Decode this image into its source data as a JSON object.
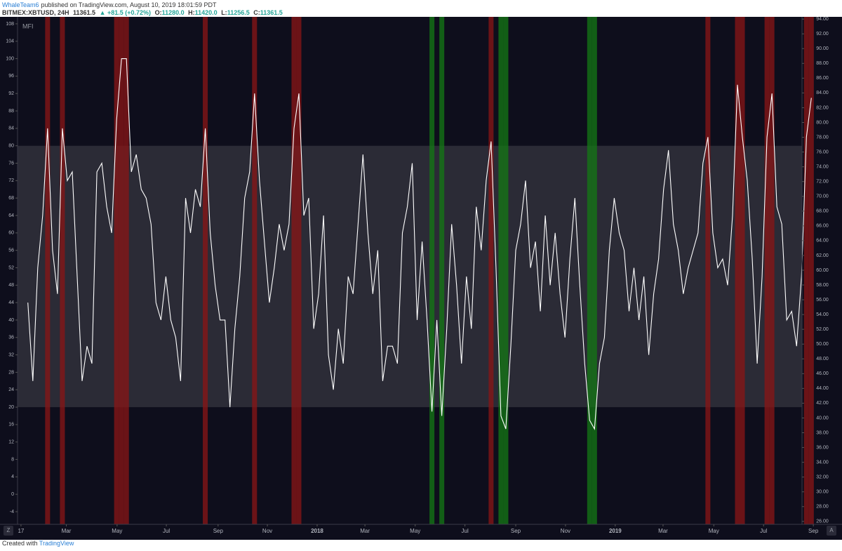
{
  "header": {
    "author": "WhaleTeam6",
    "published": "published on TradingView.com, August 10, 2019 18:01:59 PDT",
    "symbol": "BITMEX:XBTUSD, 24H",
    "last": "11361.5",
    "change": "▲ +81.5 (+0.72%)",
    "open_label": "O:",
    "open": "11280.0",
    "high_label": "H:",
    "high": "11420.0",
    "low_label": "L:",
    "low": "11256.5",
    "close_label": "C:",
    "close": "11361.5"
  },
  "footer": {
    "created": "Created with",
    "brand": "TradingView"
  },
  "buttons": {
    "left": "Z",
    "right": "A"
  },
  "chart_data": {
    "type": "line",
    "indicator": "MFI",
    "color": "#ffffff",
    "overbought": 80,
    "oversold": 20,
    "overbought_color": "#8b1515",
    "oversold_color": "#147a14",
    "band_color": "#2b2b36",
    "values": [
      44,
      26,
      52,
      64,
      84,
      56,
      46,
      84,
      72,
      74,
      50,
      26,
      34,
      30,
      74,
      76,
      66,
      60,
      86,
      100,
      100,
      74,
      78,
      70,
      68,
      62,
      44,
      40,
      50,
      40,
      36,
      26,
      68,
      60,
      70,
      66,
      84,
      60,
      48,
      40,
      40,
      20,
      38,
      50,
      68,
      74,
      92,
      72,
      58,
      44,
      52,
      62,
      56,
      62,
      84,
      92,
      64,
      68,
      38,
      46,
      64,
      32,
      24,
      38,
      30,
      50,
      46,
      62,
      78,
      60,
      46,
      56,
      26,
      34,
      34,
      30,
      60,
      66,
      76,
      40,
      58,
      40,
      19,
      40,
      18,
      38,
      62,
      48,
      30,
      50,
      38,
      66,
      56,
      72,
      81,
      52,
      18,
      15,
      34,
      56,
      62,
      72,
      52,
      58,
      42,
      64,
      48,
      60,
      46,
      36,
      54,
      68,
      48,
      30,
      17,
      15,
      30,
      36,
      56,
      68,
      60,
      56,
      42,
      52,
      40,
      50,
      32,
      46,
      54,
      70,
      79,
      62,
      56,
      46,
      52,
      56,
      60,
      76,
      82,
      60,
      52,
      54,
      48,
      64,
      94,
      82,
      72,
      54,
      30,
      50,
      82,
      92,
      66,
      62,
      40,
      42,
      34,
      50,
      82,
      91
    ],
    "xlim": [
      -2.1,
      157.1
    ],
    "xticks": [
      {
        "value": -1.4,
        "label": "17"
      },
      {
        "value": 7.8,
        "label": "Mar"
      },
      {
        "value": 18.1,
        "label": "May"
      },
      {
        "value": 28.1,
        "label": "Jul"
      },
      {
        "value": 38.6,
        "label": "Sep"
      },
      {
        "value": 48.6,
        "label": "Nov"
      },
      {
        "value": 58.7,
        "label": "2018"
      },
      {
        "value": 68.4,
        "label": "Mar"
      },
      {
        "value": 78.6,
        "label": "May"
      },
      {
        "value": 88.7,
        "label": "Jul"
      },
      {
        "value": 99.0,
        "label": "Sep"
      },
      {
        "value": 109.1,
        "label": "Nov"
      },
      {
        "value": 119.2,
        "label": "2019"
      },
      {
        "value": 128.9,
        "label": "Mar"
      },
      {
        "value": 139.2,
        "label": "May"
      },
      {
        "value": 149.3,
        "label": "Jul"
      },
      {
        "value": 159.4,
        "label": "Sep"
      }
    ],
    "ylim": [
      -6.9,
      109.6
    ],
    "yticks": [
      108,
      104,
      100,
      96,
      92,
      88,
      84,
      80,
      76,
      72,
      68,
      64,
      60,
      56,
      52,
      48,
      44,
      40,
      36,
      32,
      28,
      24,
      20,
      16,
      12,
      8,
      4,
      0,
      -4
    ],
    "y2lim": [
      25.6,
      94.3
    ],
    "y2ticks": [
      {
        "value": 94,
        "label": "94.00"
      },
      {
        "value": 92,
        "label": "92.00"
      },
      {
        "value": 90,
        "label": "90.00"
      },
      {
        "value": 88,
        "label": "88.00"
      },
      {
        "value": 86,
        "label": "86.00"
      },
      {
        "value": 84,
        "label": "84.00"
      },
      {
        "value": 82,
        "label": "82.00"
      },
      {
        "value": 80,
        "label": "80.00"
      },
      {
        "value": 78,
        "label": "78.00"
      },
      {
        "value": 76,
        "label": "76.00"
      },
      {
        "value": 74,
        "label": "74.00"
      },
      {
        "value": 72,
        "label": "72.00"
      },
      {
        "value": 70,
        "label": "70.00"
      },
      {
        "value": 68,
        "label": "68.00"
      },
      {
        "value": 66,
        "label": "66.00"
      },
      {
        "value": 64,
        "label": "64.00"
      },
      {
        "value": 62,
        "label": "62.00"
      },
      {
        "value": 60,
        "label": "60.00"
      },
      {
        "value": 58,
        "label": "58.00"
      },
      {
        "value": 56,
        "label": "56.00"
      },
      {
        "value": 54,
        "label": "54.00"
      },
      {
        "value": 52,
        "label": "52.00"
      },
      {
        "value": 50,
        "label": "50.00"
      },
      {
        "value": 48,
        "label": "48.00"
      },
      {
        "value": 46,
        "label": "46.00"
      },
      {
        "value": 44,
        "label": "44.00"
      },
      {
        "value": 42,
        "label": "42.00"
      },
      {
        "value": 40,
        "label": "40.00"
      },
      {
        "value": 38,
        "label": "38.00"
      },
      {
        "value": 36,
        "label": "36.00"
      },
      {
        "value": 34,
        "label": "34.00"
      },
      {
        "value": 32,
        "label": "32.00"
      },
      {
        "value": 30,
        "label": "30.00"
      },
      {
        "value": 28,
        "label": "28.00"
      },
      {
        "value": 26,
        "label": "26.00"
      }
    ]
  }
}
